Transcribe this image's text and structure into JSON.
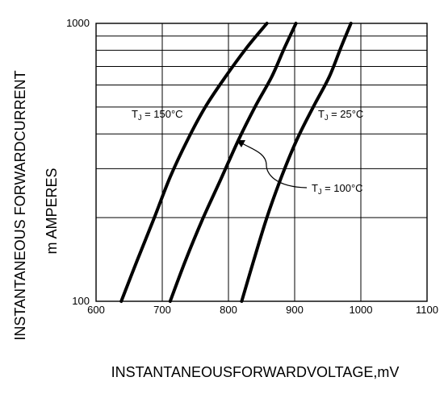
{
  "chart_data": {
    "type": "line",
    "title": "",
    "xlabel": "INSTANTANEOUSFORWARDVOLTAGE,mV",
    "ylabel": "INSTANTANEOUS FORWARDCURRENT",
    "ylabel2": "m AMPERES",
    "xlim": [
      600,
      1100
    ],
    "ylim": [
      100,
      1000
    ],
    "yscale": "log",
    "grid": true,
    "x_ticks": [
      "600",
      "700",
      "800",
      "900",
      "1000",
      "1100"
    ],
    "y_ticks": [
      "100",
      "1000"
    ],
    "series": [
      {
        "name": "T_J = 150°C",
        "x": [
          638,
          662,
          688,
          712,
          738,
          765,
          795,
          828,
          858
        ],
        "y": [
          100,
          140,
          200,
          280,
          380,
          500,
          640,
          820,
          1000
        ]
      },
      {
        "name": "T_J = 100°C",
        "x": [
          712,
          735,
          762,
          790,
          815,
          840,
          865,
          885,
          902
        ],
        "y": [
          100,
          140,
          200,
          280,
          380,
          500,
          640,
          820,
          1000
        ]
      },
      {
        "name": "T_J = 25°C",
        "x": [
          820,
          838,
          858,
          880,
          903,
          928,
          952,
          970,
          985
        ],
        "y": [
          100,
          140,
          200,
          280,
          380,
          500,
          640,
          820,
          1000
        ]
      }
    ],
    "annotations": [
      {
        "text": "T",
        "sub": "J",
        "suffix": " = 150°C"
      },
      {
        "text": "T",
        "sub": "J",
        "suffix": " = 25°C"
      },
      {
        "text": "T",
        "sub": "J",
        "suffix": " = 100°C"
      }
    ]
  }
}
